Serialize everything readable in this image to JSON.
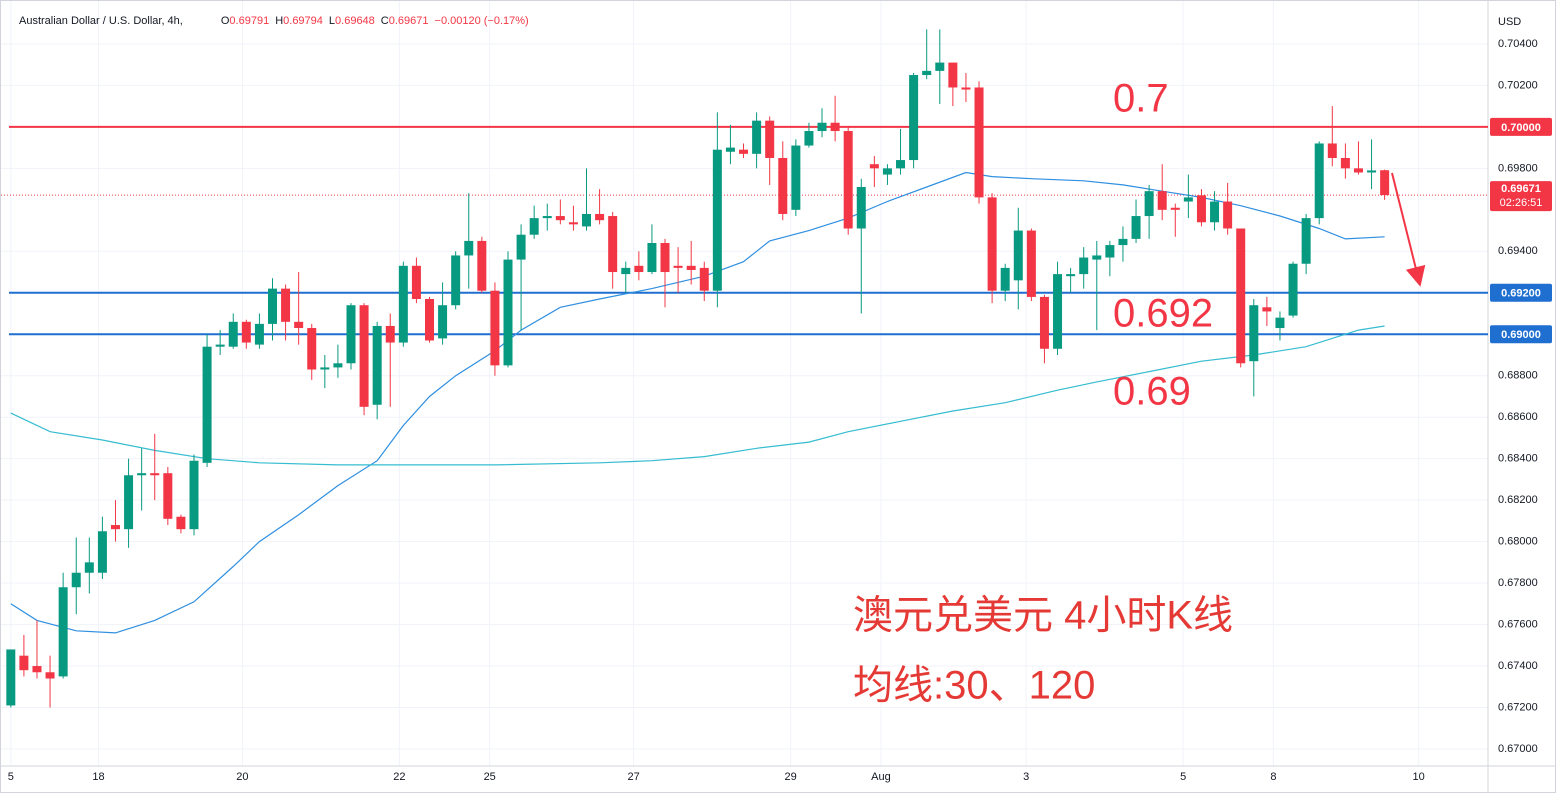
{
  "chart_data": {
    "type": "candlestick",
    "title": "Australian Dollar / U.S. Dollar, 4h,",
    "ohlc_labels": [
      "O",
      "H",
      "L",
      "C"
    ],
    "change": "−0.00120 (−0.17%)",
    "currency": "USD",
    "up_color": "#089981",
    "down_color": "#f23645",
    "candles": [
      [
        0.6721,
        0.6748,
        0.672,
        0.6748
      ],
      [
        0.6745,
        0.6755,
        0.6735,
        0.6738
      ],
      [
        0.674,
        0.6762,
        0.6734,
        0.6737
      ],
      [
        0.6737,
        0.6745,
        0.672,
        0.6734
      ],
      [
        0.6735,
        0.6785,
        0.6734,
        0.6778
      ],
      [
        0.6778,
        0.6802,
        0.6765,
        0.6785
      ],
      [
        0.6785,
        0.6802,
        0.6775,
        0.679
      ],
      [
        0.6785,
        0.6812,
        0.6782,
        0.6805
      ],
      [
        0.6808,
        0.682,
        0.68,
        0.6806
      ],
      [
        0.6806,
        0.684,
        0.6797,
        0.6832
      ],
      [
        0.6832,
        0.6845,
        0.6815,
        0.6833
      ],
      [
        0.6833,
        0.6852,
        0.682,
        0.6832
      ],
      [
        0.6833,
        0.6836,
        0.6808,
        0.6811
      ],
      [
        0.6812,
        0.6813,
        0.6804,
        0.6806
      ],
      [
        0.6806,
        0.6842,
        0.6803,
        0.6839
      ],
      [
        0.6838,
        0.69,
        0.6836,
        0.6894
      ],
      [
        0.6894,
        0.6902,
        0.689,
        0.6895
      ],
      [
        0.6894,
        0.691,
        0.6893,
        0.6906
      ],
      [
        0.6906,
        0.6907,
        0.6893,
        0.6896
      ],
      [
        0.6895,
        0.691,
        0.6893,
        0.6905
      ],
      [
        0.6905,
        0.6927,
        0.6897,
        0.6922
      ],
      [
        0.6922,
        0.6924,
        0.6897,
        0.6906
      ],
      [
        0.6906,
        0.693,
        0.6895,
        0.6903
      ],
      [
        0.6903,
        0.6905,
        0.6878,
        0.6883
      ],
      [
        0.6883,
        0.689,
        0.6874,
        0.6884
      ],
      [
        0.6884,
        0.6895,
        0.6879,
        0.6886
      ],
      [
        0.6886,
        0.6915,
        0.6883,
        0.6914
      ],
      [
        0.6914,
        0.6915,
        0.6861,
        0.6865
      ],
      [
        0.6866,
        0.6906,
        0.6859,
        0.6904
      ],
      [
        0.6904,
        0.691,
        0.6865,
        0.6896
      ],
      [
        0.6896,
        0.6935,
        0.6894,
        0.6933
      ],
      [
        0.6933,
        0.6937,
        0.6915,
        0.6917
      ],
      [
        0.6917,
        0.6918,
        0.6896,
        0.6897
      ],
      [
        0.6898,
        0.6925,
        0.6895,
        0.6914
      ],
      [
        0.6914,
        0.694,
        0.6912,
        0.6938
      ],
      [
        0.6938,
        0.6968,
        0.6922,
        0.6945
      ],
      [
        0.6945,
        0.6947,
        0.692,
        0.6921
      ],
      [
        0.6921,
        0.6925,
        0.688,
        0.6885
      ],
      [
        0.6885,
        0.694,
        0.6884,
        0.6936
      ],
      [
        0.6936,
        0.6953,
        0.6902,
        0.6948
      ],
      [
        0.6948,
        0.6962,
        0.6946,
        0.6956
      ],
      [
        0.6956,
        0.6963,
        0.695,
        0.6957
      ],
      [
        0.6957,
        0.6965,
        0.6953,
        0.6955
      ],
      [
        0.6954,
        0.6962,
        0.695,
        0.6953
      ],
      [
        0.6952,
        0.698,
        0.695,
        0.6958
      ],
      [
        0.6958,
        0.697,
        0.6953,
        0.6955
      ],
      [
        0.6957,
        0.6959,
        0.6922,
        0.693
      ],
      [
        0.6929,
        0.6935,
        0.692,
        0.6932
      ],
      [
        0.6933,
        0.694,
        0.6926,
        0.693
      ],
      [
        0.693,
        0.6953,
        0.6929,
        0.6944
      ],
      [
        0.6944,
        0.6946,
        0.6913,
        0.693
      ],
      [
        0.6933,
        0.6942,
        0.692,
        0.6932
      ],
      [
        0.6933,
        0.6945,
        0.6924,
        0.6931
      ],
      [
        0.6932,
        0.6935,
        0.6916,
        0.6921
      ],
      [
        0.6921,
        0.7007,
        0.6913,
        0.6989
      ],
      [
        0.6988,
        0.7001,
        0.6982,
        0.699
      ],
      [
        0.6989,
        0.6992,
        0.6985,
        0.6987
      ],
      [
        0.6987,
        0.7007,
        0.698,
        0.7003
      ],
      [
        0.7003,
        0.7005,
        0.6972,
        0.6985
      ],
      [
        0.6985,
        0.6993,
        0.6955,
        0.6958
      ],
      [
        0.696,
        0.6994,
        0.6957,
        0.6991
      ],
      [
        0.6991,
        0.7002,
        0.699,
        0.6998
      ],
      [
        0.6998,
        0.7009,
        0.6995,
        0.7002
      ],
      [
        0.7002,
        0.7015,
        0.6993,
        0.6998
      ],
      [
        0.6998,
        0.7,
        0.6948,
        0.6951
      ],
      [
        0.6951,
        0.6975,
        0.691,
        0.6971
      ],
      [
        0.6982,
        0.6986,
        0.6971,
        0.698
      ],
      [
        0.6977,
        0.6982,
        0.6972,
        0.698
      ],
      [
        0.698,
        0.6999,
        0.6977,
        0.6984
      ],
      [
        0.6984,
        0.7026,
        0.698,
        0.7025
      ],
      [
        0.7025,
        0.7047,
        0.7023,
        0.7027
      ],
      [
        0.7027,
        0.7047,
        0.7011,
        0.7031
      ],
      [
        0.7031,
        0.7031,
        0.701,
        0.7019
      ],
      [
        0.7019,
        0.7026,
        0.7012,
        0.7018
      ],
      [
        0.7019,
        0.7022,
        0.6963,
        0.6966
      ],
      [
        0.6966,
        0.6968,
        0.6915,
        0.6921
      ],
      [
        0.6921,
        0.6934,
        0.6916,
        0.6932
      ],
      [
        0.6926,
        0.6961,
        0.6912,
        0.695
      ],
      [
        0.695,
        0.6951,
        0.6916,
        0.6918
      ],
      [
        0.6918,
        0.6919,
        0.6886,
        0.6893
      ],
      [
        0.6893,
        0.6935,
        0.689,
        0.6929
      ],
      [
        0.6928,
        0.6932,
        0.692,
        0.6929
      ],
      [
        0.6929,
        0.6942,
        0.6922,
        0.6937
      ],
      [
        0.6936,
        0.6945,
        0.6902,
        0.6938
      ],
      [
        0.6937,
        0.6945,
        0.6928,
        0.6943
      ],
      [
        0.6943,
        0.6952,
        0.6935,
        0.6946
      ],
      [
        0.6946,
        0.6965,
        0.6944,
        0.6957
      ],
      [
        0.6957,
        0.6972,
        0.6946,
        0.6969
      ],
      [
        0.6969,
        0.6982,
        0.6955,
        0.696
      ],
      [
        0.6961,
        0.6963,
        0.6947,
        0.696
      ],
      [
        0.6964,
        0.6977,
        0.6956,
        0.6966
      ],
      [
        0.6967,
        0.697,
        0.6952,
        0.6954
      ],
      [
        0.6954,
        0.6969,
        0.695,
        0.6964
      ],
      [
        0.6964,
        0.6973,
        0.6948,
        0.6951
      ],
      [
        0.6951,
        0.6951,
        0.6884,
        0.6886
      ],
      [
        0.6887,
        0.6917,
        0.687,
        0.6914
      ],
      [
        0.6913,
        0.6918,
        0.6904,
        0.6911
      ],
      [
        0.6903,
        0.6911,
        0.6897,
        0.6908
      ],
      [
        0.6909,
        0.6935,
        0.6908,
        0.6934
      ],
      [
        0.6934,
        0.6958,
        0.6929,
        0.6956
      ],
      [
        0.6956,
        0.6993,
        0.6953,
        0.6992
      ],
      [
        0.6992,
        0.701,
        0.6981,
        0.6985
      ],
      [
        0.6985,
        0.6992,
        0.6975,
        0.698
      ],
      [
        0.698,
        0.6993,
        0.6977,
        0.6978
      ],
      [
        0.6978,
        0.6994,
        0.697,
        0.6979
      ],
      [
        0.69791,
        0.69794,
        0.69648,
        0.69671
      ]
    ],
    "ma": [
      {
        "color": "#2f8fe0",
        "x": [
          0,
          2,
          5,
          8,
          11,
          14,
          17,
          19,
          22,
          25,
          28,
          30,
          32,
          34,
          37,
          39,
          42,
          45,
          49,
          53,
          56,
          58,
          61,
          64,
          67,
          70,
          73,
          75,
          78,
          82,
          85,
          88,
          91,
          94,
          97,
          100,
          102,
          105
        ],
        "values": [
          0.677,
          0.6762,
          0.6757,
          0.6756,
          0.6762,
          0.6771,
          0.6788,
          0.68,
          0.6813,
          0.6827,
          0.6839,
          0.6856,
          0.687,
          0.688,
          0.6892,
          0.6902,
          0.6913,
          0.6917,
          0.6922,
          0.6928,
          0.6935,
          0.6945,
          0.695,
          0.6956,
          0.6964,
          0.6971,
          0.6978,
          0.6976,
          0.6975,
          0.6974,
          0.6972,
          0.6969,
          0.6966,
          0.6962,
          0.6957,
          0.6951,
          0.6946,
          0.6947
        ]
      },
      {
        "color": "#35bcd0",
        "x": [
          0,
          3,
          7,
          11,
          15,
          19,
          25,
          30,
          37,
          45,
          49,
          53,
          57,
          61,
          64,
          68,
          72,
          76,
          80,
          83,
          87,
          91,
          95,
          99,
          103,
          105
        ],
        "values": [
          0.6862,
          0.6853,
          0.6849,
          0.6844,
          0.684,
          0.6838,
          0.6837,
          0.6837,
          0.6837,
          0.6838,
          0.6839,
          0.6841,
          0.6845,
          0.6848,
          0.6853,
          0.6858,
          0.6863,
          0.6867,
          0.6873,
          0.6877,
          0.6882,
          0.6887,
          0.689,
          0.6894,
          0.6902,
          0.6904
        ]
      }
    ],
    "xlim": [
      -0.75,
      112.9
    ],
    "ylim": [
      0.66918,
      0.70607
    ],
    "xticks": [
      {
        "value": 0,
        "label": "5"
      },
      {
        "value": 6.7,
        "label": "18"
      },
      {
        "value": 17.7,
        "label": "20"
      },
      {
        "value": 29.7,
        "label": "22"
      },
      {
        "value": 36.6,
        "label": "25"
      },
      {
        "value": 47.6,
        "label": "27"
      },
      {
        "value": 59.6,
        "label": "29"
      },
      {
        "value": 66.5,
        "label": "Aug"
      },
      {
        "value": 77.6,
        "label": "3"
      },
      {
        "value": 89.6,
        "label": "5"
      },
      {
        "value": 96.5,
        "label": "8"
      },
      {
        "value": 107.6,
        "label": "10"
      }
    ],
    "yticks": [
      {
        "value": 0.704,
        "label": "0.70400"
      },
      {
        "value": 0.702,
        "label": "0.70200"
      },
      {
        "value": 0.698,
        "label": "0.69800"
      },
      {
        "value": 0.694,
        "label": "0.69400"
      },
      {
        "value": 0.688,
        "label": "0.68800"
      },
      {
        "value": 0.686,
        "label": "0.68600"
      },
      {
        "value": 0.684,
        "label": "0.68400"
      },
      {
        "value": 0.682,
        "label": "0.68200"
      },
      {
        "value": 0.68,
        "label": "0.68000"
      },
      {
        "value": 0.678,
        "label": "0.67800"
      },
      {
        "value": 0.676,
        "label": "0.67600"
      },
      {
        "value": 0.674,
        "label": "0.67400"
      },
      {
        "value": 0.672,
        "label": "0.67200"
      },
      {
        "value": 0.67,
        "label": "0.67000"
      }
    ],
    "grid": true,
    "hlines": [
      {
        "value": 0.7,
        "label": "0.70000",
        "color": "#f23645"
      },
      {
        "value": 0.692,
        "label": "0.69200",
        "color": "#1e6fd0"
      },
      {
        "value": 0.69,
        "label": "0.69000",
        "color": "#1e6fd0"
      }
    ],
    "price_line": {
      "value": 0.69671,
      "label": "0.69671",
      "countdown": "02:26:51",
      "color": "#f23645"
    },
    "annotations": [
      "0.7",
      "0.692",
      "0.69"
    ],
    "notes": [
      "澳元兑美元 4小时K线",
      "均线:30、120"
    ]
  }
}
